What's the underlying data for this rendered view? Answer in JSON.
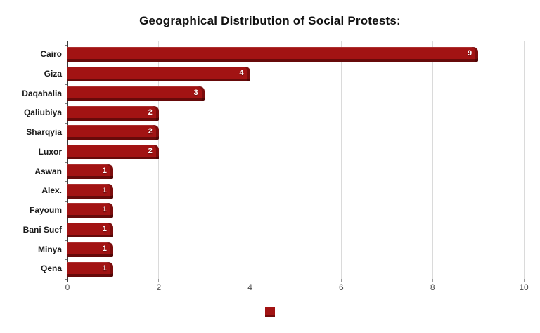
{
  "chart_data": {
    "type": "bar",
    "orientation": "horizontal",
    "title": "Geographical Distribution of Social Protests:",
    "categories": [
      "Cairo",
      "Giza",
      "Daqahalia",
      "Qaliubiya",
      "Sharqyia",
      "Luxor",
      "Aswan",
      "Alex.",
      "Fayoum",
      "Bani Suef",
      "Minya",
      "Qena"
    ],
    "values": [
      9,
      4,
      3,
      2,
      2,
      2,
      1,
      1,
      1,
      1,
      1,
      1
    ],
    "value_labels": [
      "9",
      "4",
      "3",
      "2",
      "2",
      "2",
      "1",
      "1",
      "1",
      "1",
      "1",
      "1"
    ],
    "xlabel": "",
    "ylabel": "",
    "xlim": [
      0,
      10
    ],
    "x_ticks": [
      0,
      2,
      4,
      6,
      8,
      10
    ],
    "x_tick_labels": [
      "0",
      "2",
      "4",
      "6",
      "8",
      "10"
    ],
    "grid": true,
    "legend_position": "bottom-center",
    "legend_label": "",
    "colors": {
      "bar": "#a21313",
      "bar_shadow": "#6e0a0a",
      "gridline": "#dadada",
      "axis_line": "#3a3a3a",
      "tick_label": "#4d4d4d",
      "category_label": "#1a1a1a",
      "title": "#111111",
      "value_label": "#ffffff",
      "background": "#ffffff"
    }
  }
}
